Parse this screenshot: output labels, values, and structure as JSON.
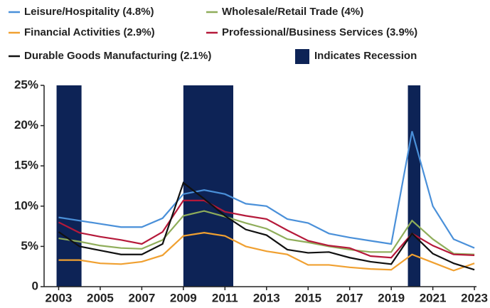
{
  "chart_data": {
    "type": "line",
    "x": [
      2003,
      2004,
      2005,
      2006,
      2007,
      2008,
      2009,
      2010,
      2011,
      2012,
      2013,
      2014,
      2015,
      2016,
      2017,
      2018,
      2019,
      2020,
      2021,
      2022,
      2023
    ],
    "series": [
      {
        "name": "Leisure/Hospitality (4.8%)",
        "color": "#4a90d9",
        "values": [
          8.6,
          8.2,
          7.8,
          7.4,
          7.4,
          8.5,
          11.5,
          12.0,
          11.5,
          10.3,
          10.0,
          8.4,
          7.9,
          6.6,
          6.1,
          5.7,
          5.3,
          19.3,
          10.0,
          5.9,
          4.8
        ]
      },
      {
        "name": "Wholesale/Retail Trade (4%)",
        "color": "#8fad5a",
        "values": [
          6.0,
          5.6,
          5.1,
          4.8,
          4.7,
          5.8,
          8.8,
          9.4,
          8.7,
          7.9,
          7.2,
          5.9,
          5.5,
          5.0,
          4.6,
          4.3,
          4.3,
          8.2,
          5.9,
          4.1,
          4.0
        ]
      },
      {
        "name": "Financial Activities (2.9%)",
        "color": "#f0a030",
        "values": [
          3.3,
          3.3,
          2.9,
          2.8,
          3.1,
          3.9,
          6.3,
          6.7,
          6.3,
          5.0,
          4.4,
          4.0,
          2.7,
          2.7,
          2.4,
          2.2,
          2.1,
          4.0,
          3.0,
          2.0,
          2.9
        ]
      },
      {
        "name": "Professional/Business Services (3.9%)",
        "color": "#b5193a",
        "values": [
          8.0,
          6.7,
          6.2,
          5.8,
          5.3,
          6.8,
          10.7,
          10.7,
          9.3,
          8.8,
          8.4,
          7.0,
          5.7,
          5.1,
          4.8,
          3.8,
          3.6,
          6.6,
          5.1,
          4.0,
          3.9
        ]
      },
      {
        "name": "Durable Goods Manufacturing (2.1%)",
        "color": "#111111",
        "values": [
          6.8,
          5.0,
          4.5,
          4.0,
          4.0,
          5.3,
          12.9,
          10.9,
          8.8,
          7.1,
          6.4,
          4.6,
          4.2,
          4.3,
          3.6,
          3.1,
          2.8,
          6.6,
          4.1,
          2.9,
          2.1
        ]
      }
    ],
    "recession_label": "Indicates Recession",
    "recession_color": "#0d2356",
    "recessions": [
      [
        2002.9,
        2004.1
      ],
      [
        2009.0,
        2011.4
      ],
      [
        2019.8,
        2020.4
      ]
    ],
    "xlim": [
      2002.3,
      2023.1
    ],
    "xticks": [
      2003,
      2005,
      2007,
      2009,
      2011,
      2013,
      2015,
      2017,
      2019,
      2021,
      2023
    ],
    "ylim": [
      0,
      25
    ],
    "yticks": [
      {
        "value": 0,
        "label": "0"
      },
      {
        "value": 5,
        "label": "5%"
      },
      {
        "value": 10,
        "label": "10%"
      },
      {
        "value": 15,
        "label": "15%"
      },
      {
        "value": 20,
        "label": "20%"
      },
      {
        "value": 25,
        "label": "25%"
      }
    ],
    "grid": false
  }
}
